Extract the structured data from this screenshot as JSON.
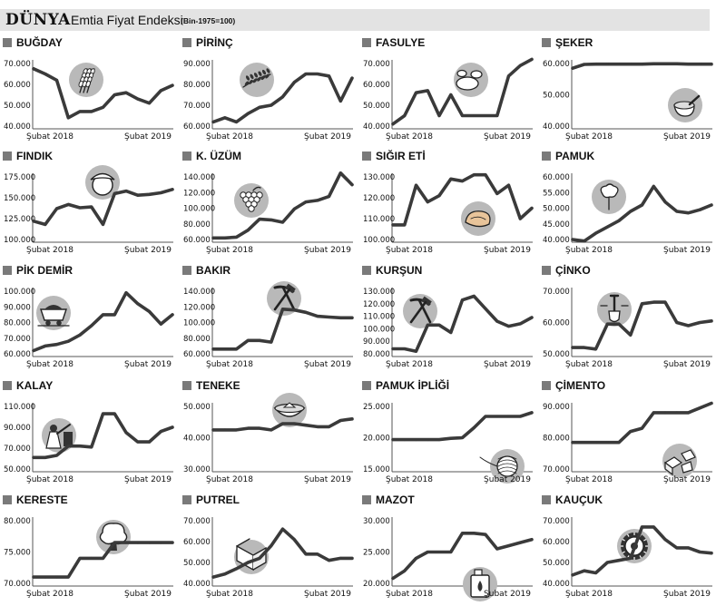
{
  "header": {
    "brand": "DÜNYA",
    "title": "Emtia Fiyat Endeksi",
    "subtitle": "(Bin-1975=100)"
  },
  "colors": {
    "line": "#3a3a3a",
    "axis": "#555555",
    "icon_bg": "#b9b9b9",
    "header_bg": "#e3e3e3",
    "title_square": "#7a7a7a"
  },
  "chart_data": [
    {
      "type": "line",
      "title": "BUĞDAY",
      "icon": "wheat-icon",
      "x_labels": [
        "Şubat 2018",
        "Şubat 2019"
      ],
      "y_ticks": [
        "70.000",
        "60.000",
        "50.000",
        "40.000"
      ],
      "ylim": [
        40000,
        70000
      ],
      "values": [
        67500,
        65000,
        62000,
        44000,
        47000,
        47000,
        49000,
        55000,
        56000,
        53000,
        51000,
        57000,
        59500
      ]
    },
    {
      "type": "line",
      "title": "PİRİNÇ",
      "icon": "rice-icon",
      "x_labels": [
        "Şubat 2018",
        "Şubat 2019"
      ],
      "y_ticks": [
        "90.000",
        "80.000",
        "70.000",
        "60.000"
      ],
      "ylim": [
        60000,
        90000
      ],
      "values": [
        62000,
        64000,
        62000,
        66000,
        69000,
        70000,
        74000,
        81000,
        85000,
        85000,
        84000,
        72000,
        83000
      ]
    },
    {
      "type": "line",
      "title": "FASULYE",
      "icon": "bean-icon",
      "x_labels": [
        "Şubat 2018",
        "Şubat 2019"
      ],
      "y_ticks": [
        "70.000",
        "60.000",
        "50.000",
        "40.000"
      ],
      "ylim": [
        40000,
        70000
      ],
      "values": [
        41000,
        45000,
        56000,
        57000,
        45000,
        55000,
        45000,
        45000,
        45000,
        45000,
        64000,
        69000,
        72000
      ]
    },
    {
      "type": "line",
      "title": "ŞEKER",
      "icon": "sugar-icon",
      "x_labels": [
        "Şubat 2018",
        "Şubat 2019"
      ],
      "y_ticks": [
        "60.000",
        "50.000",
        "40.000"
      ],
      "ylim": [
        40000,
        60000
      ],
      "values": [
        58500,
        59700,
        59800,
        59800,
        59800,
        59800,
        59800,
        59900,
        59900,
        59900,
        59800,
        59800,
        59800
      ]
    },
    {
      "type": "line",
      "title": "FINDIK",
      "icon": "hazelnut-icon",
      "x_labels": [
        "Şubat 2018",
        "Şubat 2019"
      ],
      "y_ticks": [
        "175.000",
        "150.000",
        "125.000",
        "100.000"
      ],
      "ylim": [
        100000,
        175000
      ],
      "values": [
        122000,
        118000,
        137000,
        142000,
        138000,
        139000,
        118000,
        155000,
        158000,
        153000,
        154000,
        156000,
        160000
      ]
    },
    {
      "type": "line",
      "title": "K. ÜZÜM",
      "icon": "grape-icon",
      "x_labels": [
        "Şubat 2018",
        "Şubat 2019"
      ],
      "y_ticks": [
        "140.000",
        "120.000",
        "100.000",
        "80.000",
        "60.000"
      ],
      "ylim": [
        60000,
        140000
      ],
      "values": [
        62000,
        62000,
        63000,
        72000,
        86000,
        85000,
        82000,
        99000,
        108000,
        110000,
        115000,
        145000,
        130000
      ]
    },
    {
      "type": "line",
      "title": "SIĞIR ETİ",
      "icon": "meat-icon",
      "x_labels": [
        "Şubat 2018",
        "Şubat 2019"
      ],
      "y_ticks": [
        "130.000",
        "120.000",
        "110.000",
        "100.000"
      ],
      "ylim": [
        100000,
        130000
      ],
      "values": [
        107000,
        107000,
        126000,
        118000,
        121000,
        129000,
        128000,
        131000,
        131000,
        122000,
        126000,
        110000,
        115000
      ]
    },
    {
      "type": "line",
      "title": "PAMUK",
      "icon": "cotton-icon",
      "x_labels": [
        "Şubat 2018",
        "Şubat 2019"
      ],
      "y_ticks": [
        "60.000",
        "55.000",
        "50.000",
        "45.000",
        "40.000"
      ],
      "ylim": [
        40000,
        60000
      ],
      "values": [
        40000,
        39500,
        42000,
        44000,
        46000,
        49000,
        51000,
        57000,
        52000,
        49000,
        48500,
        49500,
        51000
      ]
    },
    {
      "type": "line",
      "title": "PİK DEMİR",
      "icon": "mining-cart-icon",
      "x_labels": [
        "Şubat 2018",
        "Şubat 2019"
      ],
      "y_ticks": [
        "100.000",
        "90.000",
        "80.000",
        "70.000",
        "60.000"
      ],
      "ylim": [
        60000,
        100000
      ],
      "values": [
        62000,
        65000,
        66000,
        68000,
        72000,
        78000,
        85000,
        85000,
        99000,
        92000,
        87000,
        79000,
        85000
      ]
    },
    {
      "type": "line",
      "title": "BAKIR",
      "icon": "pickaxe-hammer-icon",
      "x_labels": [
        "Şubat 2018",
        "Şubat 2019"
      ],
      "y_ticks": [
        "140.000",
        "120.000",
        "100.000",
        "80.000",
        "60.000"
      ],
      "ylim": [
        60000,
        140000
      ],
      "values": [
        66000,
        66000,
        66000,
        77000,
        77000,
        75000,
        117000,
        116000,
        113000,
        108000,
        107000,
        106000,
        106000
      ]
    },
    {
      "type": "line",
      "title": "KURŞUN",
      "icon": "pickaxe-hammer-icon",
      "x_labels": [
        "Şubat 2018",
        "Şubat 2019"
      ],
      "y_ticks": [
        "130.000",
        "120.000",
        "110.000",
        "100.000",
        "90.000",
        "80.000"
      ],
      "ylim": [
        80000,
        130000
      ],
      "values": [
        84000,
        84000,
        82000,
        103000,
        103000,
        97000,
        123000,
        126000,
        116000,
        106000,
        102000,
        104000,
        109000
      ]
    },
    {
      "type": "line",
      "title": "ÇİNKO",
      "icon": "shovel-icon",
      "x_labels": [
        "Şubat 2018",
        "Şubat 2019"
      ],
      "y_ticks": [
        "70.000",
        "60.000",
        "50.000"
      ],
      "ylim": [
        50000,
        70000
      ],
      "values": [
        52000,
        52000,
        51500,
        59500,
        59500,
        56000,
        66000,
        66500,
        66500,
        60000,
        59000,
        60000,
        60500
      ]
    },
    {
      "type": "line",
      "title": "KALAY",
      "icon": "miners-icon",
      "x_labels": [
        "Şubat 2018",
        "Şubat 2019"
      ],
      "y_ticks": [
        "110.000",
        "90.000",
        "70.000",
        "50.000"
      ],
      "ylim": [
        50000,
        110000
      ],
      "values": [
        61000,
        61000,
        63000,
        72000,
        72000,
        71000,
        103000,
        103000,
        85000,
        76000,
        76000,
        86000,
        90000
      ]
    },
    {
      "type": "line",
      "title": "TENEKE",
      "icon": "tin-bowl-icon",
      "x_labels": [
        "Şubat 2018",
        "Şubat 2019"
      ],
      "y_ticks": [
        "50.000",
        "40.000",
        "30.000"
      ],
      "ylim": [
        30000,
        50000
      ],
      "values": [
        42500,
        42500,
        42500,
        43000,
        43000,
        42500,
        44500,
        44500,
        44000,
        43500,
        43500,
        45500,
        46000
      ]
    },
    {
      "type": "line",
      "title": "PAMUK İPLİĞİ",
      "icon": "yarn-ball-icon",
      "x_labels": [
        "Şubat 2018",
        "Şubat 2019"
      ],
      "y_ticks": [
        "25.000",
        "20.000",
        "15.000"
      ],
      "ylim": [
        15000,
        25000
      ],
      "values": [
        19700,
        19700,
        19700,
        19700,
        19700,
        19900,
        20000,
        21600,
        23400,
        23400,
        23400,
        23400,
        24000
      ]
    },
    {
      "type": "line",
      "title": "ÇİMENTO",
      "icon": "cement-blocks-icon",
      "x_labels": [
        "Şubat 2018",
        "Şubat 2019"
      ],
      "y_ticks": [
        "90.000",
        "80.000",
        "70.000"
      ],
      "ylim": [
        70000,
        90000
      ],
      "values": [
        78500,
        78500,
        78500,
        78500,
        78500,
        82000,
        83000,
        88000,
        88000,
        88000,
        88000,
        89500,
        91000
      ]
    },
    {
      "type": "line",
      "title": "KERESTE",
      "icon": "tree-icon",
      "x_labels": [
        "Şubat 2018",
        "Şubat 2019"
      ],
      "y_ticks": [
        "80.000",
        "75.000",
        "70.000"
      ],
      "ylim": [
        70000,
        80000
      ],
      "values": [
        71000,
        71000,
        71000,
        71000,
        74000,
        74000,
        74000,
        76500,
        76500,
        76500,
        76500,
        76500,
        76500
      ]
    },
    {
      "type": "line",
      "title": "PUTREL",
      "icon": "steel-beam-icon",
      "x_labels": [
        "Şubat 2018",
        "Şubat 2019"
      ],
      "y_ticks": [
        "70.000",
        "60.000",
        "50.000",
        "40.000"
      ],
      "ylim": [
        40000,
        70000
      ],
      "values": [
        43000,
        44500,
        47000,
        50000,
        52000,
        58000,
        66000,
        61000,
        54000,
        54000,
        51000,
        52000,
        52000
      ]
    },
    {
      "type": "line",
      "title": "MAZOT",
      "icon": "fuel-can-icon",
      "x_labels": [
        "Şubat 2018",
        "Şubat 2019"
      ],
      "y_ticks": [
        "30.000",
        "25.000",
        "20.000"
      ],
      "ylim": [
        20000,
        30000
      ],
      "values": [
        20800,
        22000,
        24000,
        25000,
        25000,
        25000,
        28000,
        28000,
        27800,
        25500,
        26000,
        26500,
        27000
      ]
    },
    {
      "type": "line",
      "title": "KAUÇUK",
      "icon": "tire-icon",
      "x_labels": [
        "Şubat 2018",
        "Şubat 2019"
      ],
      "y_ticks": [
        "70.000",
        "60.000",
        "50.000",
        "40.000"
      ],
      "ylim": [
        40000,
        70000
      ],
      "values": [
        44000,
        46000,
        45000,
        50000,
        51000,
        52000,
        67000,
        67000,
        61000,
        57000,
        57000,
        55000,
        54500
      ]
    }
  ]
}
